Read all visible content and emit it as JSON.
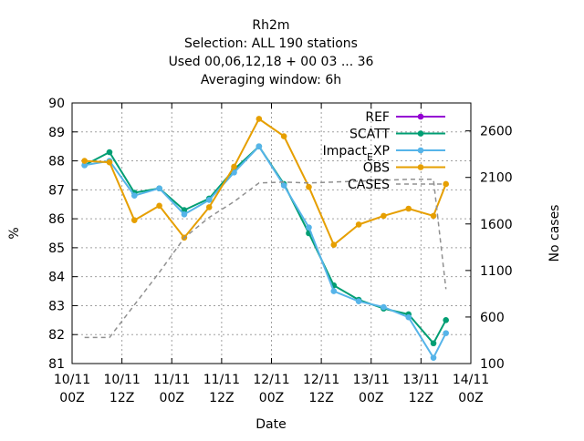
{
  "chart_data": {
    "type": "line",
    "title_lines": [
      "Rh2m",
      "Selection: ALL    190 stations",
      "Used  00,06,12,18 + 00 03 ... 36",
      "Averaging window:  6h"
    ],
    "xlabel": "Date",
    "ylabel": "%",
    "y2label": "No cases",
    "xlim": [
      0,
      96
    ],
    "ylim": [
      81,
      90
    ],
    "y2lim": [
      100,
      2900
    ],
    "x_ticks": [
      {
        "x": 0,
        "line1": "10/11",
        "line2": "00Z"
      },
      {
        "x": 12,
        "line1": "10/11",
        "line2": "12Z"
      },
      {
        "x": 24,
        "line1": "11/11",
        "line2": "00Z"
      },
      {
        "x": 36,
        "line1": "11/11",
        "line2": "12Z"
      },
      {
        "x": 48,
        "line1": "12/11",
        "line2": "00Z"
      },
      {
        "x": 60,
        "line1": "12/11",
        "line2": "12Z"
      },
      {
        "x": 72,
        "line1": "13/11",
        "line2": "00Z"
      },
      {
        "x": 84,
        "line1": "13/11",
        "line2": "12Z"
      },
      {
        "x": 96,
        "line1": "14/11",
        "line2": "00Z"
      }
    ],
    "y_ticks": [
      81,
      82,
      83,
      84,
      85,
      86,
      87,
      88,
      89,
      90
    ],
    "y2_ticks": [
      100,
      600,
      1100,
      1600,
      2100,
      2600
    ],
    "grid": true,
    "legend_position": "top-right",
    "series": [
      {
        "name": "REF",
        "color": "#9400d3",
        "marker": "circle",
        "x": [],
        "y": []
      },
      {
        "name": "SCATT",
        "color": "#009e73",
        "marker": "circle",
        "x": [
          3,
          9,
          15,
          21,
          27,
          33,
          39,
          45,
          51,
          57,
          63,
          69,
          75,
          81,
          87,
          90
        ],
        "y": [
          87.85,
          88.3,
          86.9,
          87.05,
          86.3,
          86.7,
          87.7,
          88.5,
          87.2,
          85.5,
          83.7,
          83.2,
          82.9,
          82.7,
          81.7,
          82.5
        ]
      },
      {
        "name": "Impact_EXP",
        "display_name": "Impact_EXP",
        "color": "#56b4e9",
        "marker": "circle",
        "x": [
          3,
          9,
          15,
          21,
          27,
          33,
          39,
          45,
          51,
          57,
          63,
          69,
          75,
          81,
          87,
          90
        ],
        "y": [
          87.85,
          88.0,
          86.8,
          87.05,
          86.15,
          86.65,
          87.6,
          88.5,
          87.15,
          85.7,
          83.5,
          83.15,
          82.95,
          82.6,
          81.2,
          82.05
        ]
      },
      {
        "name": "OBS",
        "color": "#e69f00",
        "marker": "circle",
        "x": [
          3,
          9,
          15,
          21,
          27,
          33,
          39,
          45,
          51,
          57,
          63,
          69,
          75,
          81,
          87,
          90
        ],
        "y": [
          88.0,
          87.95,
          85.95,
          86.45,
          85.35,
          86.4,
          87.8,
          89.45,
          88.85,
          87.1,
          85.1,
          85.8,
          86.1,
          86.35,
          86.1,
          87.2
        ]
      },
      {
        "name": "CASES",
        "color": "#909090",
        "dashed": true,
        "axis": "y2",
        "x": [
          3,
          9,
          15,
          21,
          27,
          33,
          39,
          45,
          51,
          57,
          63,
          69,
          75,
          81,
          87,
          90
        ],
        "y": [
          380,
          380,
          730,
          1080,
          1450,
          1670,
          1840,
          2040,
          2050,
          2040,
          2050,
          2060,
          2070,
          2080,
          2080,
          900
        ]
      }
    ]
  }
}
